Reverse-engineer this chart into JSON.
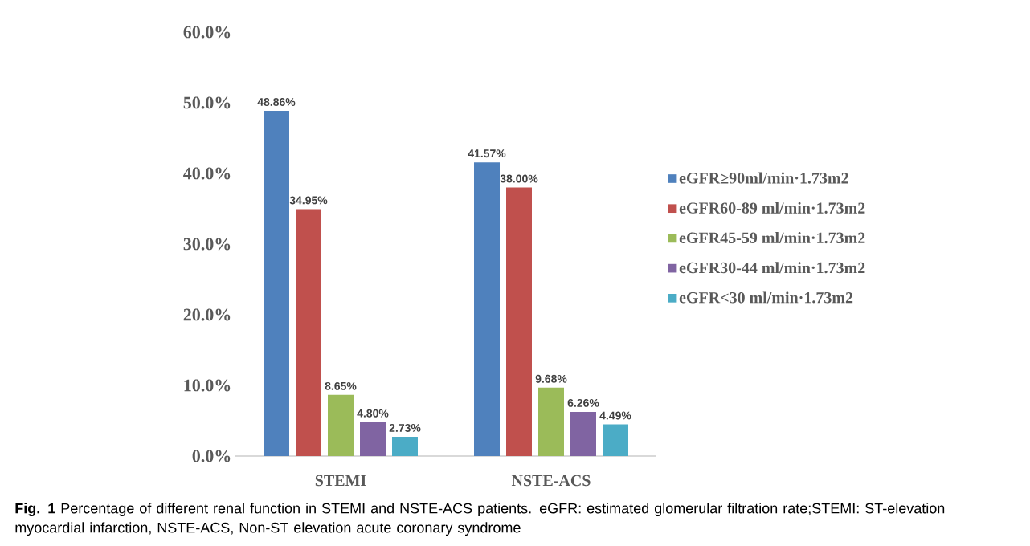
{
  "chart_data": {
    "type": "bar",
    "categories": [
      "STEMI",
      "NSTE-ACS"
    ],
    "series": [
      {
        "name": "eGFR≥90ml/min·1.73m2",
        "color": "#4f81bd",
        "values": [
          48.86,
          41.57
        ],
        "value_labels": [
          "48.86%",
          "41.57%"
        ]
      },
      {
        "name": "eGFR60-89 ml/min·1.73m2",
        "color": "#c0504d",
        "values": [
          34.95,
          38.0
        ],
        "value_labels": [
          "34.95%",
          "38.00%"
        ]
      },
      {
        "name": "eGFR45-59 ml/min·1.73m2",
        "color": "#9bbb59",
        "values": [
          8.65,
          9.68
        ],
        "value_labels": [
          "8.65%",
          "9.68%"
        ]
      },
      {
        "name": "eGFR30-44 ml/min·1.73m2",
        "color": "#8064a2",
        "values": [
          4.8,
          6.26
        ],
        "value_labels": [
          "4.80%",
          "6.26%"
        ]
      },
      {
        "name": "eGFR<30 ml/min·1.73m2",
        "color": "#4bacc6",
        "values": [
          2.73,
          4.49
        ],
        "value_labels": [
          "2.73%",
          "4.49%"
        ]
      }
    ],
    "ylim": [
      0,
      60
    ],
    "yticks": [
      {
        "value": 0,
        "label": "0.0%"
      },
      {
        "value": 10,
        "label": "10.0%"
      },
      {
        "value": 20,
        "label": "20.0%"
      },
      {
        "value": 30,
        "label": "30.0%"
      },
      {
        "value": 40,
        "label": "40.0%"
      },
      {
        "value": 50,
        "label": "50.0%"
      },
      {
        "value": 60,
        "label": "60.0%"
      }
    ],
    "grid": false,
    "legend": "right",
    "annotations": [
      "**Fig. 1** Percentage of different renal function in STEMI and NSTE-ACS patients. eGFR: estimated glomerular filtration rate;STEMI: ST-elevation myocardial infarction, NSTE-ACS, Non-ST elevation acute coronary syndrome"
    ]
  }
}
